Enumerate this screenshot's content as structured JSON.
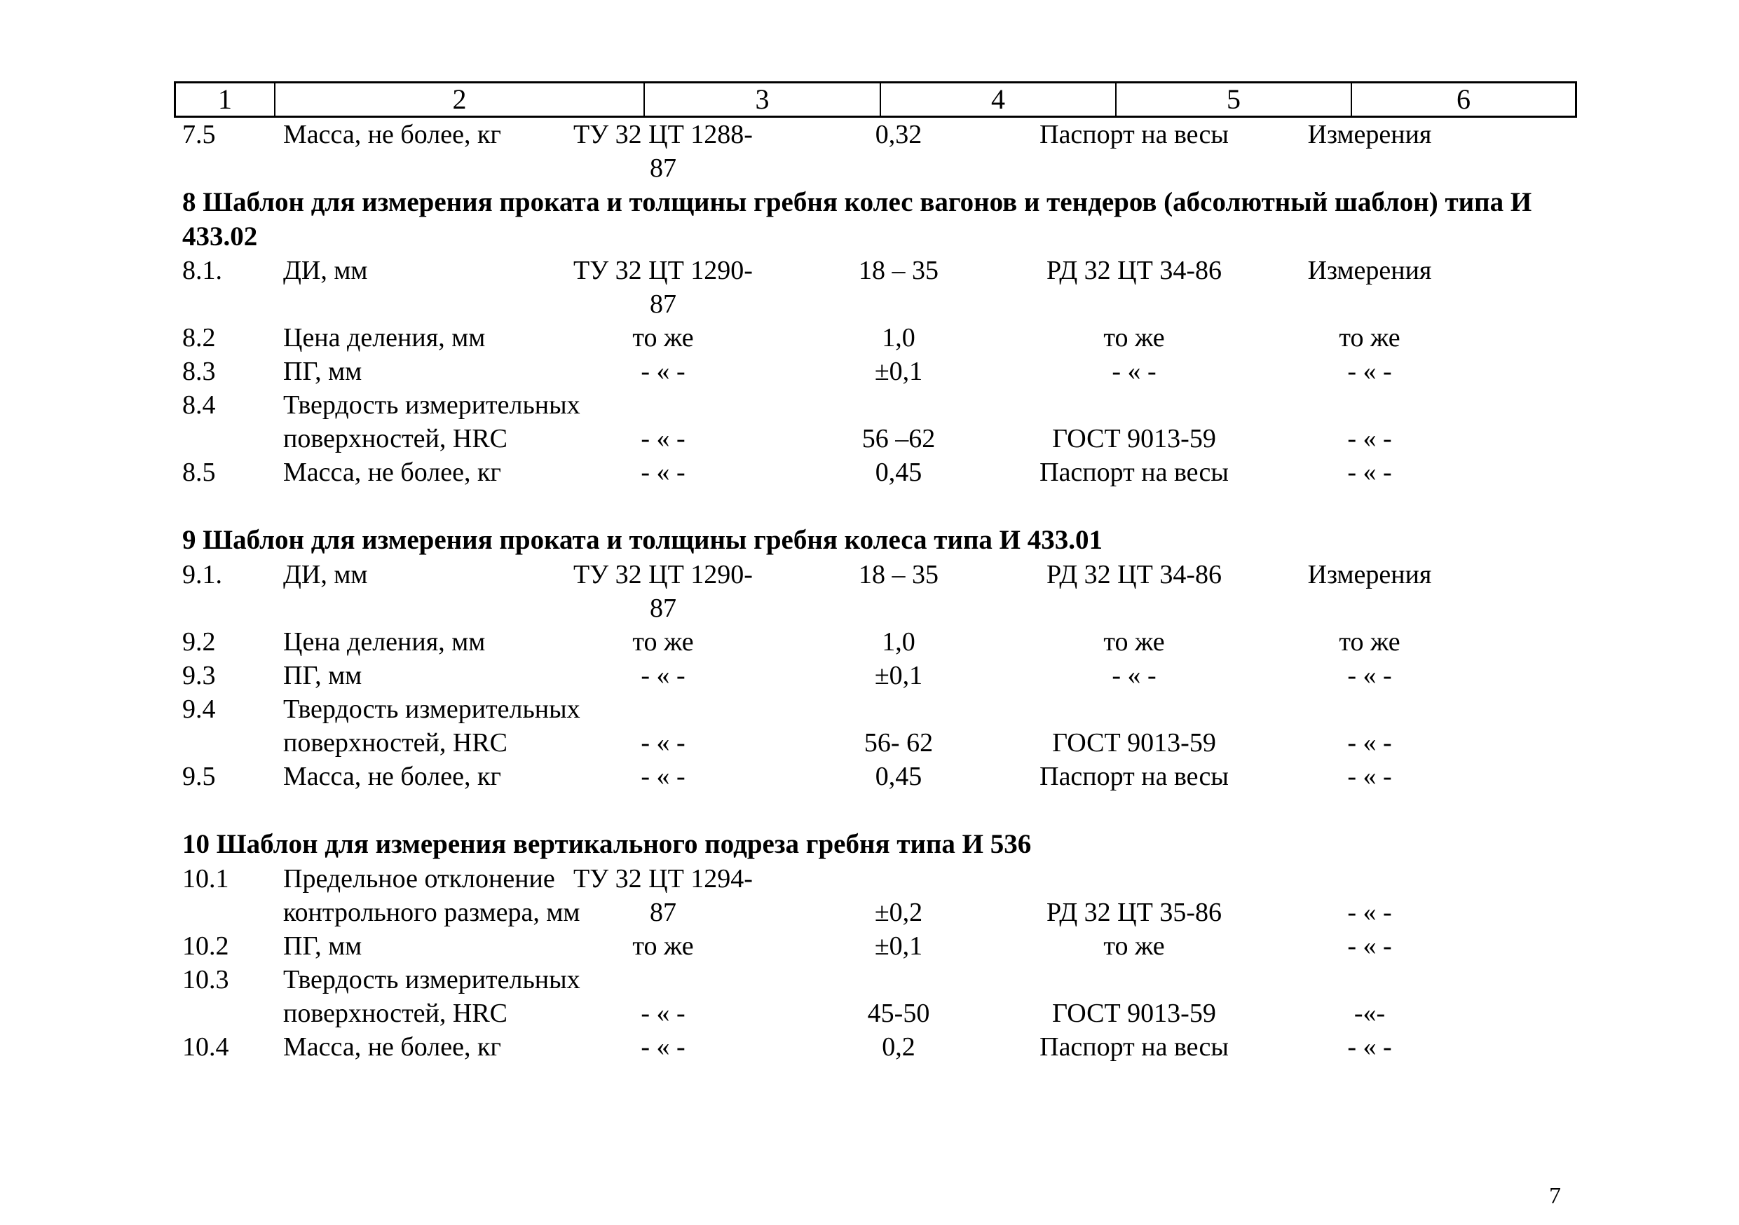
{
  "header": [
    "1",
    "2",
    "3",
    "4",
    "5",
    "6"
  ],
  "rows_7": [
    {
      "n": "7.5",
      "name": [
        "Масса, не более, кг"
      ],
      "doc": [
        "ТУ 32 ЦТ 1288-",
        "87"
      ],
      "value": "0,32",
      "method": "Паспорт на весы",
      "type": "Измерения"
    }
  ],
  "section_8": {
    "title": "8 Шаблон для измерения проката и толщины  гребня колес вагонов и тендеров (абсолютный шаблон) типа И 433.02",
    "rows": [
      {
        "n": "8.1.",
        "name": [
          "ДИ, мм"
        ],
        "doc": [
          "ТУ 32 ЦТ 1290-",
          "87"
        ],
        "value": "18 – 35",
        "method": "РД 32 ЦТ 34-86",
        "type": "Измерения"
      },
      {
        "n": "8.2",
        "name": [
          "Цена деления, мм"
        ],
        "doc": [
          "то же"
        ],
        "value": "1,0",
        "method": "то же",
        "type": "то же"
      },
      {
        "n": "8.3",
        "name": [
          "ПГ, мм"
        ],
        "doc": [
          "- « -"
        ],
        "value": "±0,1",
        "method": "- « -",
        "type": "- « -"
      },
      {
        "n": "8.4",
        "name": [
          "Твердость измерительных",
          "поверхностей, HRC"
        ],
        "doc": [
          "",
          "- « -"
        ],
        "value": "56 –62",
        "method": "ГОСТ 9013-59",
        "type": "- « -"
      },
      {
        "n": "8.5",
        "name": [
          "Масса, не более, кг"
        ],
        "doc": [
          "- « -"
        ],
        "value": "0,45",
        "method": "Паспорт на весы",
        "type": "- « -"
      }
    ]
  },
  "section_9": {
    "title": "9 Шаблон для измерения проката и толщины гребня колеса типа И 433.01",
    "rows": [
      {
        "n": "9.1.",
        "name": [
          "ДИ, мм"
        ],
        "doc": [
          "ТУ 32 ЦТ 1290-",
          "87"
        ],
        "value": "18 – 35",
        "method": "РД 32 ЦТ 34-86",
        "type": "Измерения"
      },
      {
        "n": "9.2",
        "name": [
          "Цена деления, мм"
        ],
        "doc": [
          "то же"
        ],
        "value": "1,0",
        "method": "то же",
        "type": "то же"
      },
      {
        "n": "9.3",
        "name": [
          "ПГ, мм"
        ],
        "doc": [
          "- « -"
        ],
        "value": "±0,1",
        "method": "- « -",
        "type": "- « -"
      },
      {
        "n": "9.4",
        "name": [
          "Твердость измерительных",
          "поверхностей,  HRC"
        ],
        "doc": [
          "",
          "- « -"
        ],
        "value": "56- 62",
        "method": "ГОСТ 9013-59",
        "type": "- « -"
      },
      {
        "n": "9.5",
        "name": [
          "Масса, не более, кг"
        ],
        "doc": [
          "- « -"
        ],
        "value": "0,45",
        "method": "Паспорт на весы",
        "type": "- « -"
      }
    ]
  },
  "section_10": {
    "title": "10 Шаблон для измерения вертикального подреза гребня типа И 536",
    "rows": [
      {
        "n": "10.1",
        "name": [
          "Предельное отклонение",
          "контрольного размера, мм"
        ],
        "doc": [
          "ТУ 32 ЦТ 1294-",
          "87"
        ],
        "value": "±0,2",
        "method": "РД 32 ЦТ 35-86",
        "type": "- « -"
      },
      {
        "n": "10.2",
        "name": [
          "ПГ, мм"
        ],
        "doc": [
          "то же"
        ],
        "value": "±0,1",
        "method": "то же",
        "type": "- « -"
      },
      {
        "n": "10.3",
        "name": [
          "Твердость измерительных",
          "поверхностей, HRC"
        ],
        "doc": [
          "",
          "- « -"
        ],
        "value": "45-50",
        "method": "ГОСТ 9013-59",
        "type": "-«-"
      },
      {
        "n": "10.4",
        "name": [
          "Масса, не более, кг"
        ],
        "doc": [
          "- « -"
        ],
        "value": "0,2",
        "method": "Паспорт на весы",
        "type": "- « -"
      }
    ]
  },
  "page_number": "7"
}
